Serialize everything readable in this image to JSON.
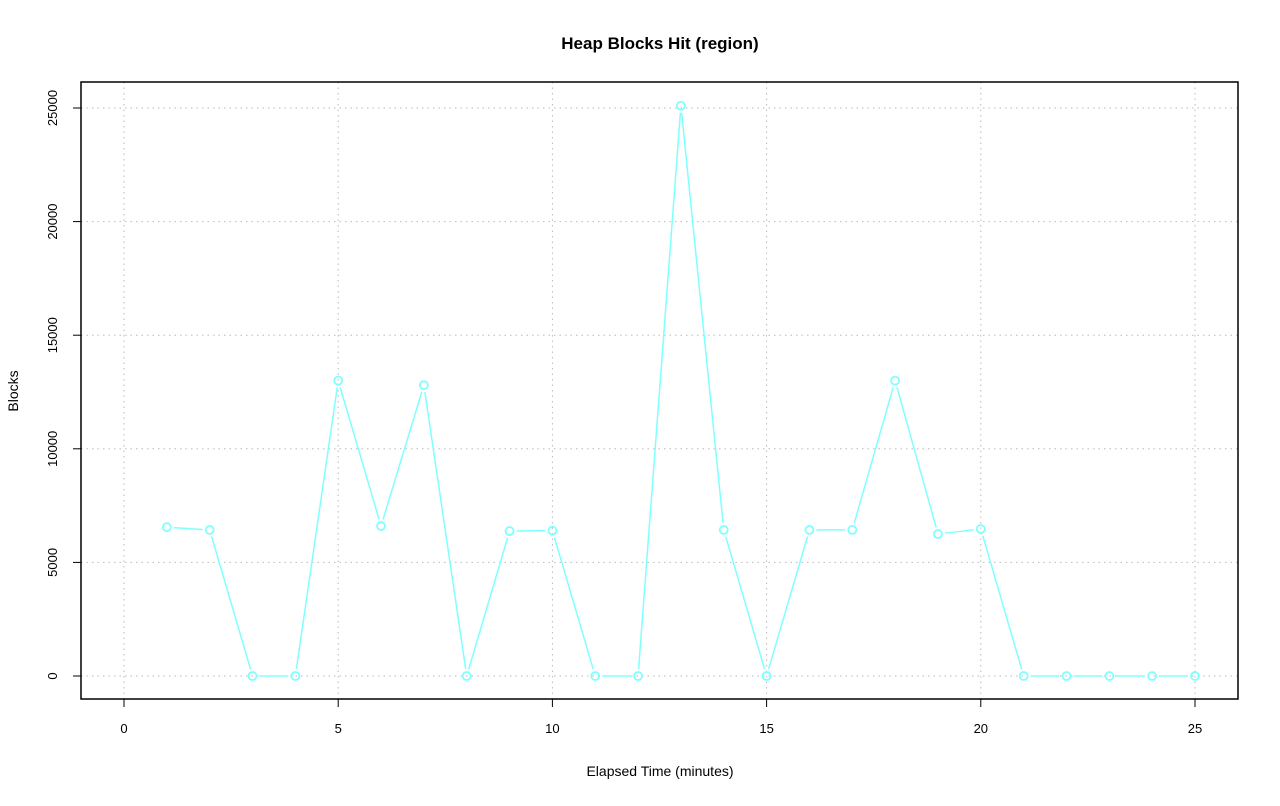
{
  "chart_data": {
    "type": "line",
    "title": "Heap Blocks Hit (region)",
    "xlabel": "Elapsed Time (minutes)",
    "ylabel": "Blocks",
    "xlim": [
      -1,
      26
    ],
    "ylim": [
      -1000,
      26300
    ],
    "xticks": [
      0,
      5,
      10,
      15,
      20,
      25
    ],
    "yticks": [
      0,
      5000,
      10000,
      15000,
      20000,
      25000
    ],
    "grid": true,
    "color": "#80ffff",
    "x": [
      1,
      2,
      3,
      4,
      5,
      6,
      7,
      8,
      9,
      10,
      11,
      12,
      13,
      14,
      15,
      16,
      17,
      18,
      19,
      20,
      21,
      22,
      23,
      24,
      25
    ],
    "values": [
      6550,
      6430,
      0,
      0,
      13000,
      6600,
      12800,
      0,
      6380,
      6400,
      0,
      0,
      25100,
      6430,
      0,
      6430,
      6430,
      13000,
      6250,
      6470,
      0,
      0,
      0,
      0,
      0
    ]
  }
}
